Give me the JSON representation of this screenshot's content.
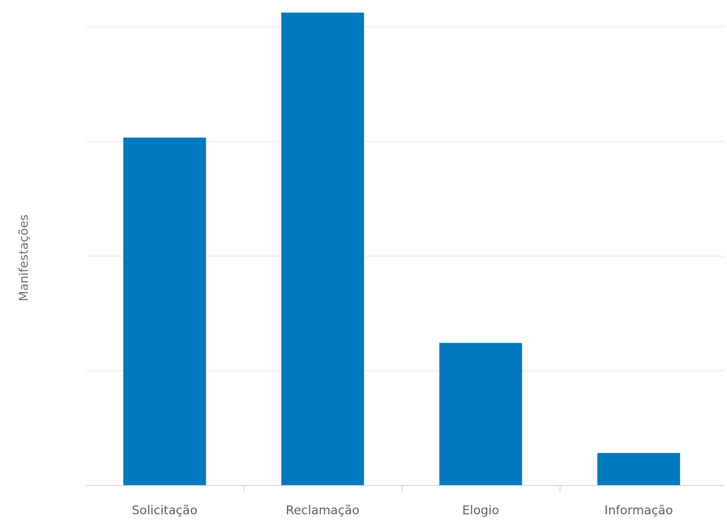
{
  "chart_data": {
    "type": "bar",
    "title": "",
    "xlabel": "",
    "ylabel": "Manifestações",
    "categories": [
      "Solicitação",
      "Reclamação",
      "Elogio",
      "Informação"
    ],
    "values": [
      3.03,
      4.12,
      1.24,
      0.28
    ],
    "ylim": [
      0,
      4
    ],
    "grid": true,
    "legend": "none",
    "bar_color": "#0079C1"
  }
}
